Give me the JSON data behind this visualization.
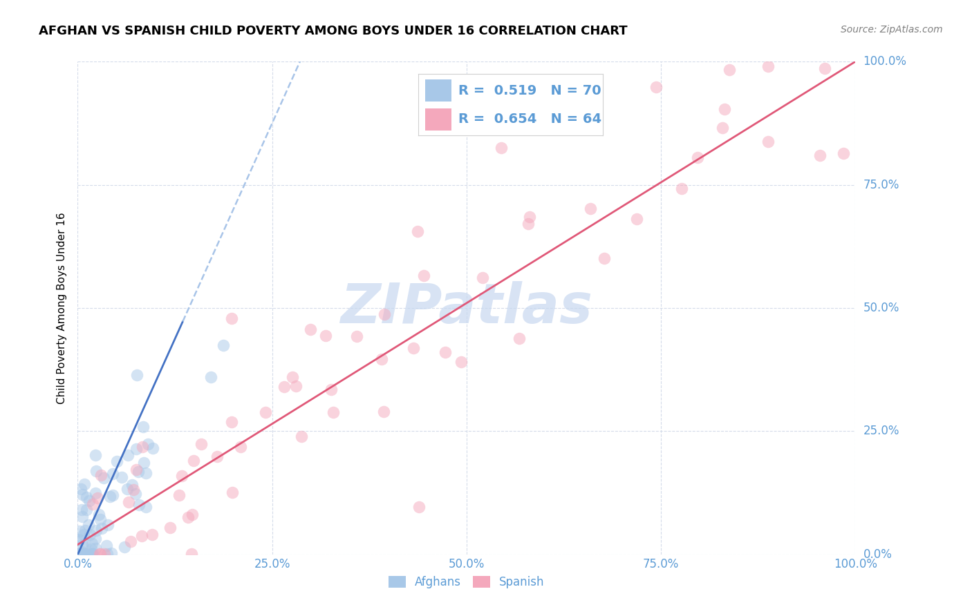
{
  "title": "AFGHAN VS SPANISH CHILD POVERTY AMONG BOYS UNDER 16 CORRELATION CHART",
  "source": "Source: ZipAtlas.com",
  "ylabel": "Child Poverty Among Boys Under 16",
  "xlim": [
    0,
    1
  ],
  "ylim": [
    0,
    1
  ],
  "xticks": [
    0.0,
    0.25,
    0.5,
    0.75,
    1.0
  ],
  "yticks": [
    0.0,
    0.25,
    0.5,
    0.75,
    1.0
  ],
  "xticklabels": [
    "0.0%",
    "25.0%",
    "50.0%",
    "75.0%",
    "100.0%"
  ],
  "yticklabels": [
    "0.0%",
    "25.0%",
    "50.0%",
    "75.0%",
    "100.0%"
  ],
  "afghans_R": 0.519,
  "afghans_N": 70,
  "spanish_R": 0.654,
  "spanish_N": 64,
  "afghans_color": "#a8c8e8",
  "spanish_color": "#f4a8bc",
  "afghans_line_color": "#4472c4",
  "afghans_line_dashed_color": "#a8c4e8",
  "spanish_line_color": "#e05878",
  "background_color": "#ffffff",
  "grid_color": "#d0d8e8",
  "watermark_color": "#c8d8f0",
  "tick_color": "#5b9bd5",
  "legend_label_color": "#5b9bd5",
  "legend_value_color": "#5b9bd5",
  "title_fontsize": 13,
  "source_fontsize": 10,
  "tick_fontsize": 12,
  "ylabel_fontsize": 11,
  "legend_fontsize": 14,
  "marker_size": 160,
  "marker_alpha": 0.5,
  "bottom_legend_labels": [
    "Afghans",
    "Spanish"
  ]
}
